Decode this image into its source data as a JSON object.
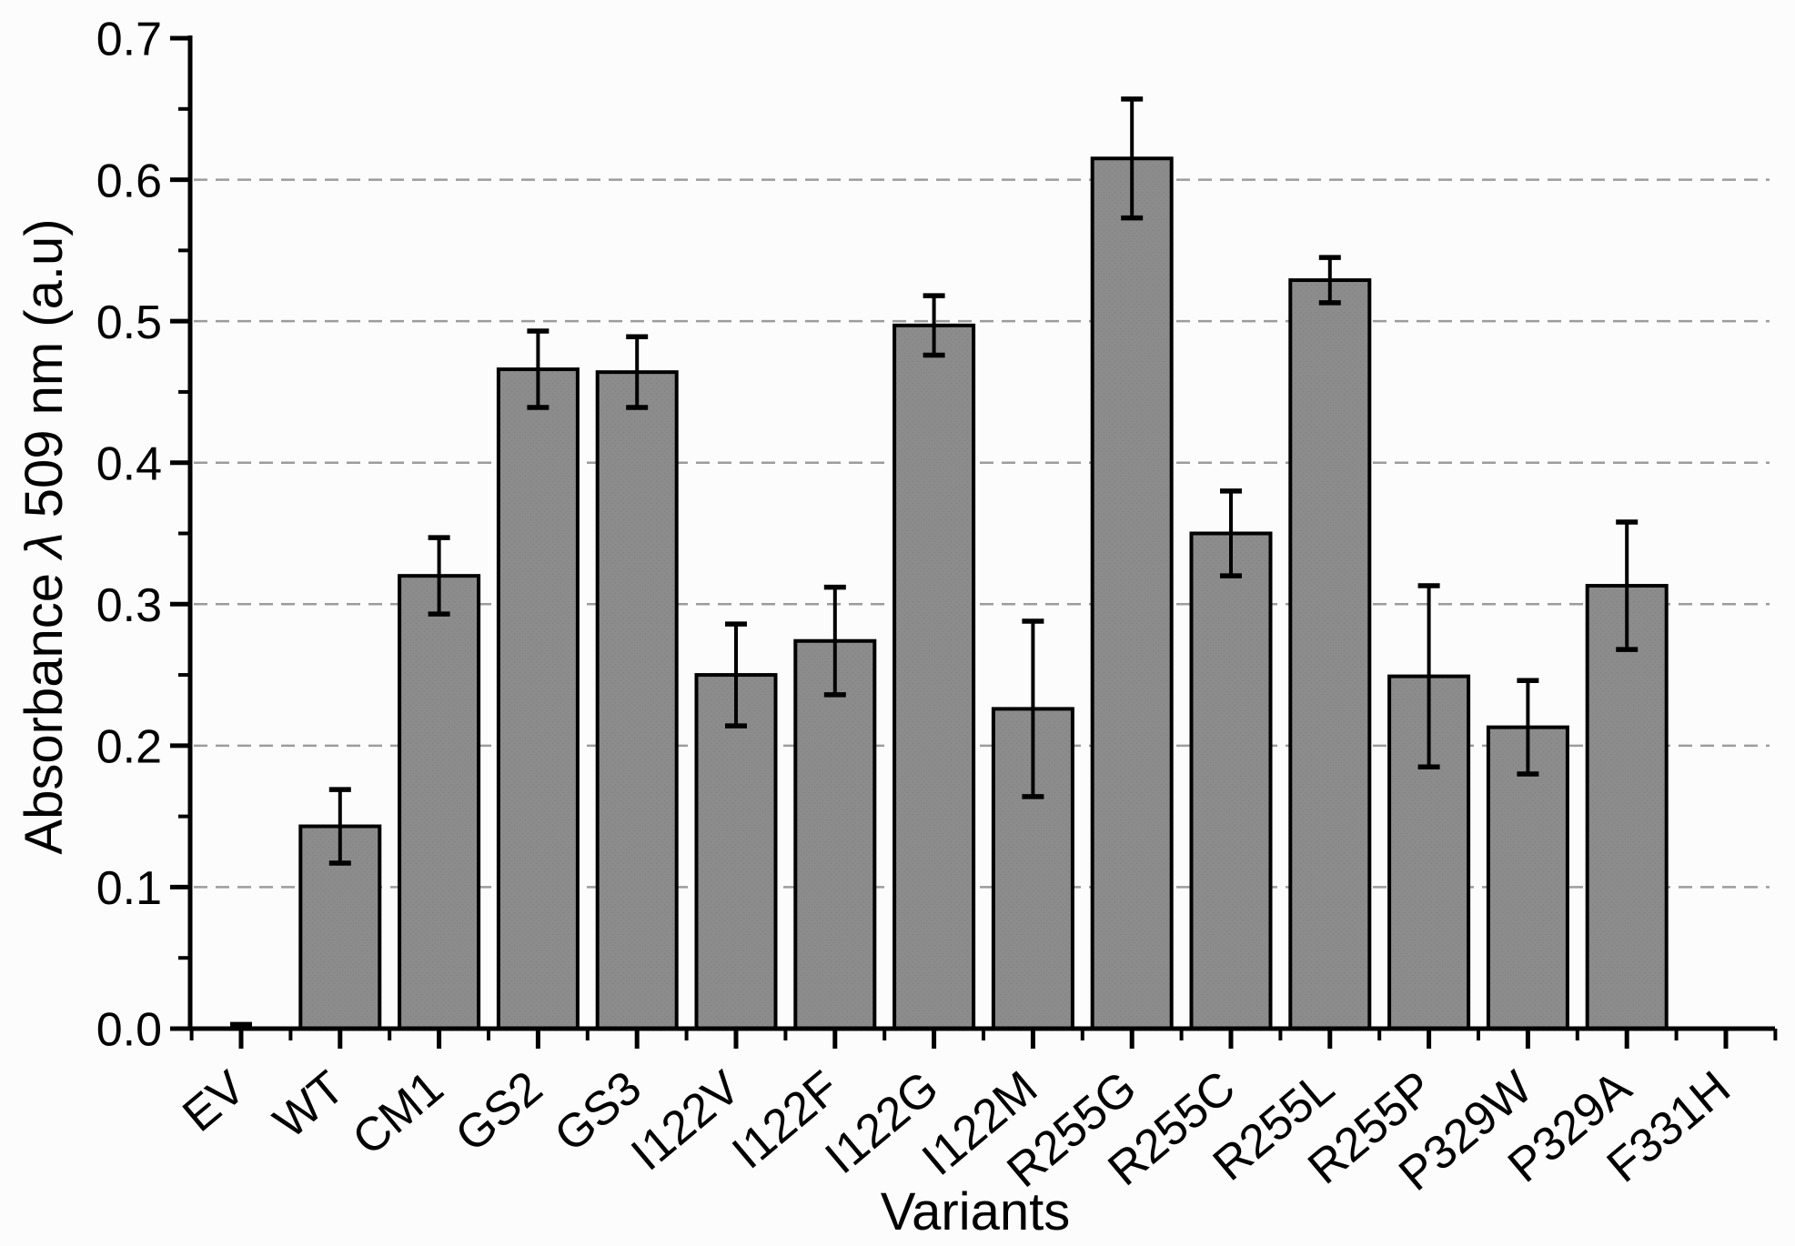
{
  "chart_data": {
    "type": "bar",
    "title": "",
    "xlabel": "Variants",
    "ylabel": "Absorbance λ 509 nm (a.u)",
    "ylabel_italic_char": "λ",
    "categories": [
      "EV",
      "WT",
      "CM1",
      "GS2",
      "GS3",
      "I122V",
      "I122F",
      "I122G",
      "I122M",
      "R255G",
      "R255C",
      "R255L",
      "R255P",
      "P329W",
      "P329A",
      "F331H"
    ],
    "values": [
      0.001,
      0.143,
      0.32,
      0.466,
      0.464,
      0.25,
      0.274,
      0.497,
      0.226,
      0.615,
      0.35,
      0.529,
      0.249,
      0.213,
      0.313,
      0.0
    ],
    "errors": [
      0.002,
      0.026,
      0.027,
      0.027,
      0.025,
      0.036,
      0.038,
      0.021,
      0.062,
      0.042,
      0.03,
      0.016,
      0.064,
      0.033,
      0.045,
      0.0
    ],
    "ylim": [
      0.0,
      0.7
    ],
    "ytick_step": 0.1,
    "ytick_minor_step": 0.05,
    "ytick_labels": [
      "0.0",
      "0.1",
      "0.2",
      "0.3",
      "0.4",
      "0.5",
      "0.6",
      "0.7"
    ],
    "gridlines_at": [
      0.1,
      0.2,
      0.3,
      0.4,
      0.5,
      0.6
    ],
    "grid_style": "dashed",
    "legend": "none",
    "colors": {
      "bar_fill": "#8c8c8c",
      "bar_edge": "#000000",
      "error_bar": "#000000",
      "axis": "#000000",
      "grid": "#9c9c9c",
      "background": "#fcfcfc",
      "text": "#000000"
    }
  }
}
